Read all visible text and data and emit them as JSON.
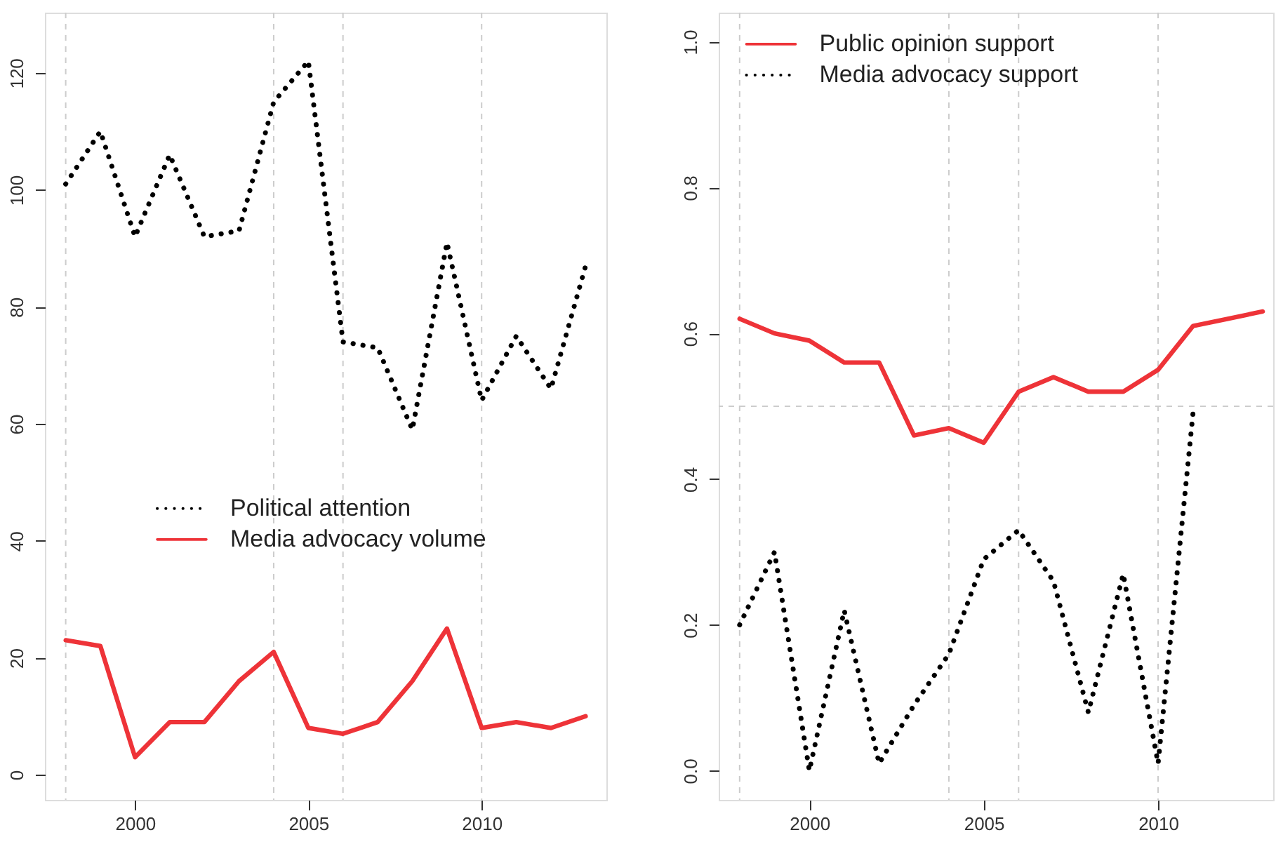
{
  "chart_data": [
    {
      "type": "line",
      "x": [
        1998,
        1999,
        2000,
        2001,
        2002,
        2003,
        2004,
        2005,
        2006,
        2007,
        2008,
        2009,
        2010,
        2011,
        2012,
        2013
      ],
      "series": [
        {
          "name": "Political attention",
          "color": "#000000",
          "line_style": "dotted",
          "values": [
            101,
            110,
            92,
            106,
            92,
            93,
            115,
            122,
            74,
            73,
            59,
            91,
            64,
            75,
            66,
            87
          ]
        },
        {
          "name": "Media advocacy volume",
          "color": "#ee3338",
          "line_style": "solid",
          "values": [
            23,
            22,
            3,
            9,
            9,
            16,
            21,
            8,
            7,
            9,
            16,
            25,
            8,
            9,
            8,
            10
          ]
        }
      ],
      "xlim": [
        1997.4,
        2013.6
      ],
      "ylim": [
        -4.3,
        130.3
      ],
      "xticks": [
        2000,
        2005,
        2010
      ],
      "yticks": [
        0,
        20,
        40,
        60,
        80,
        100,
        120
      ],
      "ref_lines": [
        {
          "axis": "x",
          "value": 1998,
          "color": "#cccccc",
          "line_style": "dashed"
        },
        {
          "axis": "x",
          "value": 2004,
          "color": "#cccccc",
          "line_style": "dashed"
        },
        {
          "axis": "x",
          "value": 2006,
          "color": "#cccccc",
          "line_style": "dashed"
        },
        {
          "axis": "x",
          "value": 2010,
          "color": "#cccccc",
          "line_style": "dashed"
        }
      ],
      "legend": "center"
    },
    {
      "type": "line",
      "x": [
        1998,
        1999,
        2000,
        2001,
        2002,
        2003,
        2004,
        2005,
        2006,
        2007,
        2008,
        2009,
        2010,
        2011,
        2012,
        2013
      ],
      "series": [
        {
          "name": "Public opinion support",
          "color": "#ee3338",
          "line_style": "solid",
          "values": [
            0.62,
            0.6,
            0.59,
            0.56,
            0.56,
            0.46,
            0.47,
            0.45,
            0.52,
            0.54,
            0.52,
            0.52,
            0.55,
            0.61,
            0.62,
            0.63
          ]
        },
        {
          "name": "Media advocacy support",
          "color": "#000000",
          "line_style": "dotted",
          "values": [
            0.2,
            0.3,
            0.0,
            0.22,
            0.01,
            0.09,
            0.16,
            0.29,
            0.33,
            0.26,
            0.08,
            0.27,
            0.01,
            0.49,
            null,
            null
          ]
        }
      ],
      "xlim": [
        1997.4,
        2013.3
      ],
      "ylim": [
        -0.04,
        1.04
      ],
      "xticks": [
        2000,
        2005,
        2010
      ],
      "yticks": [
        {
          "value": 0,
          "label": "0.0"
        },
        0.2,
        0.4,
        0.6,
        0.8,
        {
          "value": 1,
          "label": "1.0"
        }
      ],
      "ref_lines": [
        {
          "axis": "x",
          "value": 1998,
          "color": "#cccccc",
          "line_style": "dashed"
        },
        {
          "axis": "x",
          "value": 2004,
          "color": "#cccccc",
          "line_style": "dashed"
        },
        {
          "axis": "x",
          "value": 2006,
          "color": "#cccccc",
          "line_style": "dashed"
        },
        {
          "axis": "x",
          "value": 2010,
          "color": "#cccccc",
          "line_style": "dashed"
        },
        {
          "axis": "y",
          "value": 0.5,
          "color": "#cccccc",
          "line_style": "dashed"
        }
      ],
      "legend": "top left"
    }
  ]
}
